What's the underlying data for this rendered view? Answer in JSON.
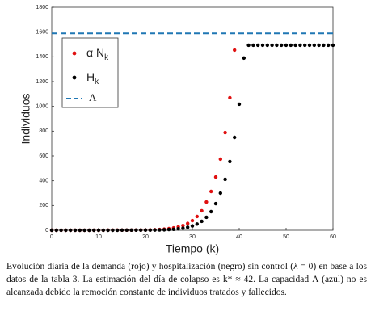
{
  "chart_data": {
    "type": "scatter",
    "xlabel": "Tiempo (k)",
    "ylabel": "Individuos",
    "x": [
      0,
      1,
      2,
      3,
      4,
      5,
      6,
      7,
      8,
      9,
      10,
      11,
      12,
      13,
      14,
      15,
      16,
      17,
      18,
      19,
      20,
      21,
      22,
      23,
      24,
      25,
      26,
      27,
      28,
      29,
      30,
      31,
      32,
      33,
      34,
      35,
      36,
      37,
      38,
      39,
      40,
      41,
      42,
      43,
      44,
      45,
      46,
      47,
      48,
      49,
      50,
      51,
      52,
      53,
      54,
      55,
      56,
      57,
      58,
      59,
      60
    ],
    "series": [
      {
        "name": "α N",
        "subscript": "k",
        "color": "#e01010",
        "values": [
          0,
          0,
          0,
          0,
          0,
          0,
          0,
          0,
          0,
          0,
          0,
          0,
          1,
          1,
          1,
          1,
          1,
          1,
          2,
          2,
          2,
          3,
          4,
          6,
          9,
          13,
          19,
          27,
          38,
          55,
          78,
          111,
          157,
          228,
          313,
          430,
          574,
          789,
          1070,
          1455,
          null,
          null,
          null,
          null,
          null,
          null,
          null,
          null,
          null,
          null,
          null,
          null,
          null,
          null,
          null,
          null,
          null,
          null,
          null,
          null,
          null
        ]
      },
      {
        "name": "H",
        "subscript": "k",
        "color": "#000000",
        "values": [
          0,
          0,
          0,
          0,
          0,
          0,
          0,
          0,
          0,
          0,
          0,
          0,
          0,
          0,
          0,
          1,
          1,
          1,
          1,
          1,
          1,
          1,
          2,
          3,
          4,
          6,
          8,
          12,
          17,
          24,
          35,
          50,
          72,
          105,
          150,
          215,
          300,
          411,
          555,
          750,
          1018,
          1390,
          1494,
          1494,
          1494,
          1494,
          1494,
          1494,
          1494,
          1494,
          1494,
          1494,
          1494,
          1494,
          1494,
          1494,
          1494,
          1494,
          1494,
          1494,
          1494
        ]
      }
    ],
    "hlines": [
      {
        "name": "Λ",
        "value": 1590,
        "color": "#1f77b4",
        "style": "dashed"
      }
    ],
    "xlim": [
      0,
      60
    ],
    "xticks": [
      0,
      10,
      20,
      30,
      40,
      50,
      60
    ],
    "ylim": [
      0,
      1800
    ],
    "yticks": [
      0,
      200,
      400,
      600,
      800,
      1000,
      1200,
      1400,
      1600,
      1800
    ],
    "legend": "upper-left"
  },
  "caption": "Evolución diaria de la demanda (rojo) y hospitalización (negro) sin control (λ = 0) en base a los datos de la tabla 3. La estimación del día de colapso es k* ≈ 42. La capacidad Λ (azul) no es alcanzada debido la remoción constante de individuos tratados y fallecidos."
}
